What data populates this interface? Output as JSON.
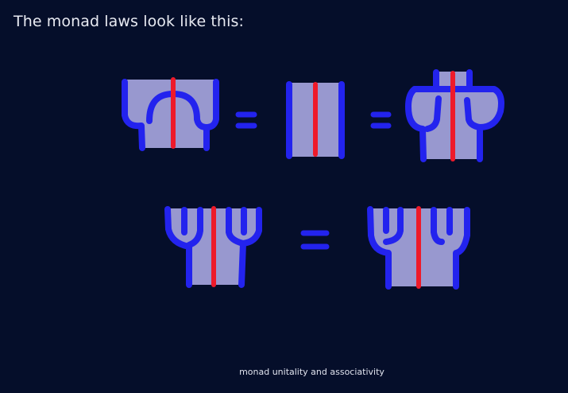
{
  "slide": {
    "title": "The monad laws look like this:",
    "caption": "monad unitality and associativity"
  },
  "colors": {
    "background": "#050e2a",
    "region_fill": "#9898cf",
    "monad_strand": "#2323ee",
    "functor_strand": "#ee1a2a",
    "text": "#e8eaf2"
  },
  "equations": [
    {
      "name": "unitality",
      "terms": 3,
      "relation": "="
    },
    {
      "name": "associativity",
      "terms": 2,
      "relation": "="
    }
  ]
}
